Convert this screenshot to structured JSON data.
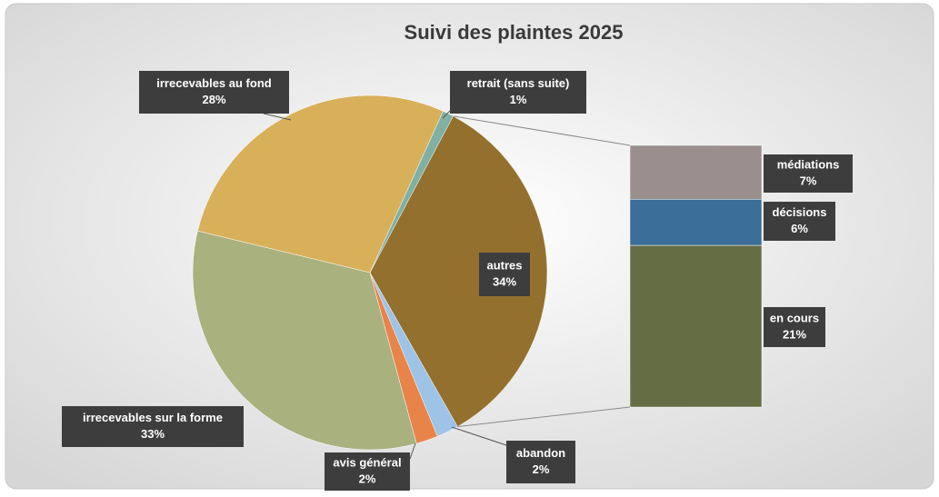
{
  "chart_data": {
    "type": "pie-of-bar",
    "title": "Suivi des plaintes 2025",
    "categories": [
      "autres",
      "abandon",
      "avis général",
      "irrecevables sur la forme",
      "irrecevables au fond",
      "retrait (sans suite)"
    ],
    "values": [
      34,
      2,
      2,
      33,
      28,
      1
    ],
    "value_labels": [
      "34%",
      "2%",
      "2%",
      "33%",
      "28%",
      "1%"
    ],
    "colors": [
      "#94702e",
      "#9dc3e6",
      "#e8834a",
      "#a9b17f",
      "#d8b05a",
      "#7fb0a3"
    ],
    "bar": {
      "categories": [
        "médiations",
        "décisions",
        "en cours"
      ],
      "values": [
        7,
        6,
        21
      ],
      "value_labels": [
        "7%",
        "6%",
        "21%"
      ],
      "colors": [
        "#9a8f8c",
        "#3b6e98",
        "#656d45"
      ]
    }
  }
}
